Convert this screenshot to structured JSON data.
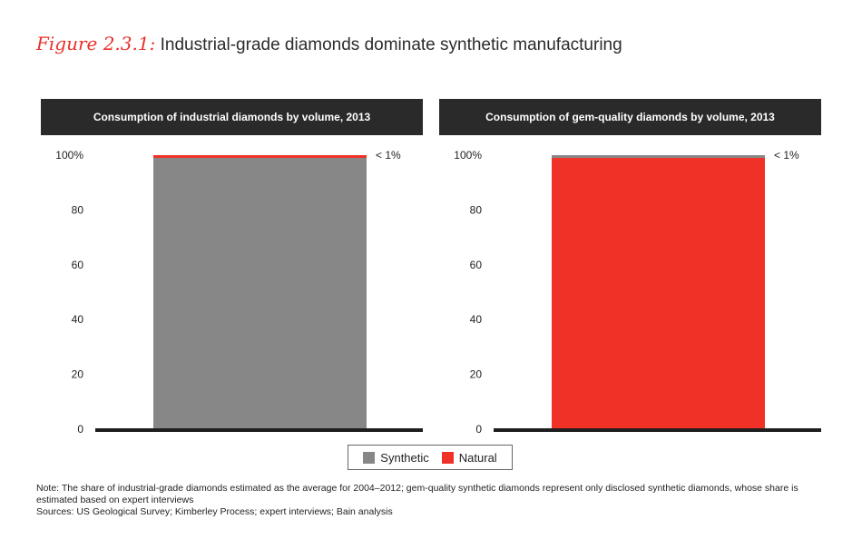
{
  "figure": {
    "label": "Figure 2.3.1:",
    "title": "Industrial-grade diamonds dominate synthetic manufacturing"
  },
  "colors": {
    "synthetic": "#878787",
    "natural": "#ef3127",
    "header_bg": "#2a2a2a"
  },
  "chart_data": [
    {
      "type": "bar",
      "stacked": true,
      "title": "Consumption of industrial diamonds by volume, 2013",
      "categories": [
        ""
      ],
      "series": [
        {
          "name": "Synthetic",
          "values": [
            99
          ]
        },
        {
          "name": "Natural",
          "values": [
            1
          ]
        }
      ],
      "ylim": [
        0,
        100
      ],
      "yticks": [
        "0",
        "20",
        "40",
        "60",
        "80",
        "100%"
      ],
      "annotation": "< 1%"
    },
    {
      "type": "bar",
      "stacked": true,
      "title": "Consumption of gem-quality diamonds by volume, 2013",
      "categories": [
        ""
      ],
      "series": [
        {
          "name": "Natural",
          "values": [
            99
          ]
        },
        {
          "name": "Synthetic",
          "values": [
            1
          ]
        }
      ],
      "ylim": [
        0,
        100
      ],
      "yticks": [
        "0",
        "20",
        "40",
        "60",
        "80",
        "100%"
      ],
      "annotation": "< 1%"
    }
  ],
  "legend": {
    "synthetic": "Synthetic",
    "natural": "Natural"
  },
  "notes": {
    "note": "Note: The share of industrial-grade diamonds estimated as the average for 2004–2012; gem-quality synthetic diamonds represent only disclosed synthetic diamonds, whose share is estimated based on expert interviews",
    "sources": "Sources: US Geological Survey; Kimberley Process; expert interviews; Bain analysis"
  }
}
